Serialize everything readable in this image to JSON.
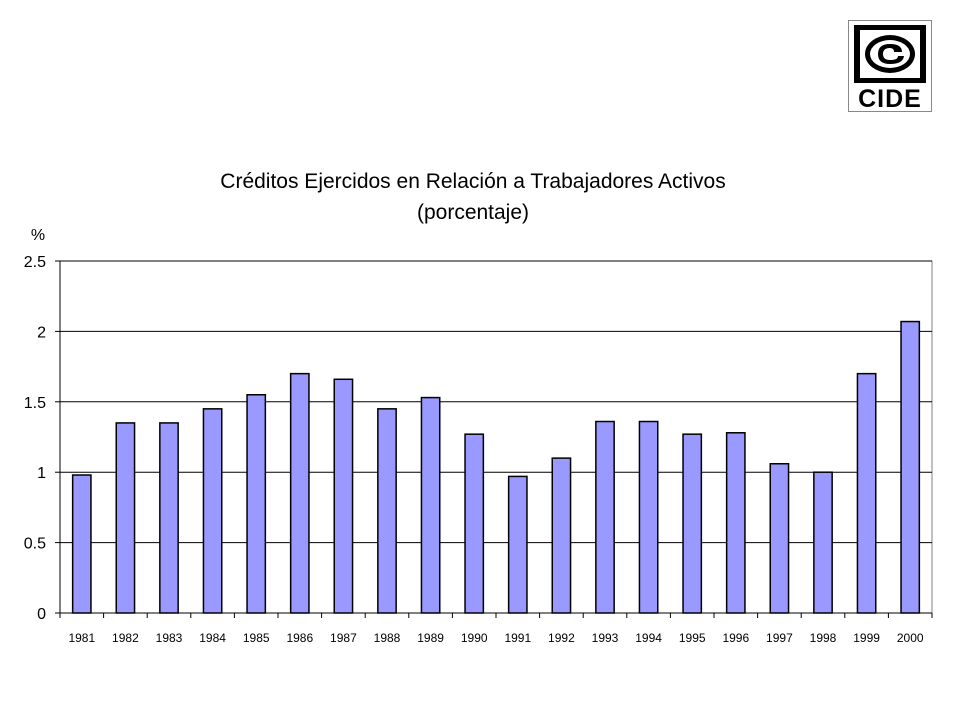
{
  "logo": {
    "text": "CIDE"
  },
  "chart_data": {
    "type": "bar",
    "title": "Créditos Ejercidos en Relación a Trabajadores Activos",
    "subtitle": "(porcentaje)",
    "ylabel": "%",
    "xlabel": "",
    "ylim": [
      0,
      2.5
    ],
    "yticks": [
      "0",
      "0.5",
      "1",
      "1.5",
      "2",
      "2.5"
    ],
    "ytick_values": [
      0,
      0.5,
      1,
      1.5,
      2,
      2.5
    ],
    "grid": true,
    "bar_color": "#9999ff",
    "categories": [
      "1981",
      "1982",
      "1983",
      "1984",
      "1985",
      "1986",
      "1987",
      "1988",
      "1989",
      "1990",
      "1991",
      "1992",
      "1993",
      "1994",
      "1995",
      "1996",
      "1997",
      "1998",
      "1999",
      "2000"
    ],
    "values": [
      0.98,
      1.35,
      1.35,
      1.45,
      1.55,
      1.7,
      1.66,
      1.45,
      1.53,
      1.27,
      0.97,
      1.1,
      1.36,
      1.36,
      1.27,
      1.28,
      1.06,
      1.0,
      1.7,
      2.07
    ]
  }
}
